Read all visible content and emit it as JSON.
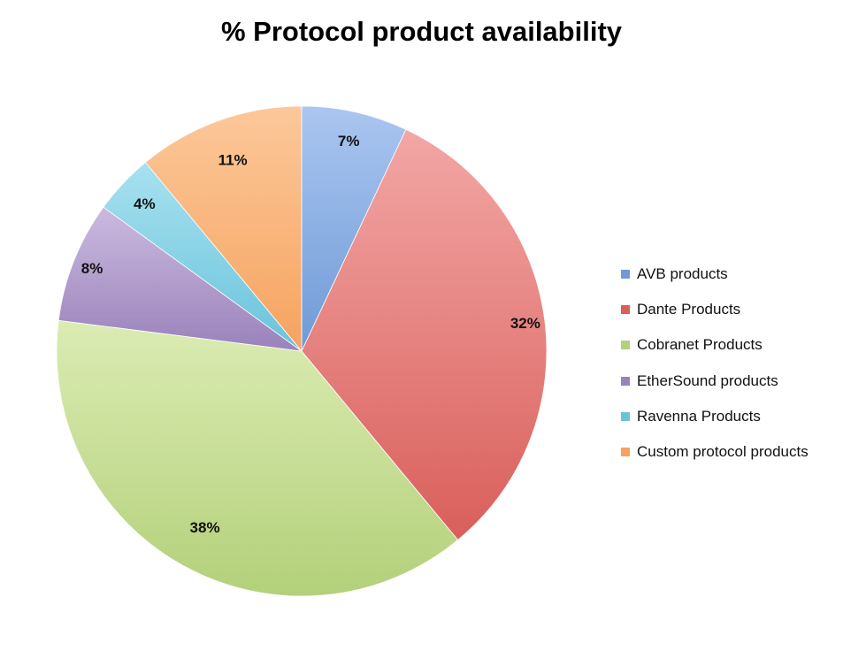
{
  "chart_data": {
    "type": "pie",
    "title": "% Protocol product availability",
    "categories": [
      "AVB products",
      "Dante Products",
      "Cobranet Products",
      "EtherSound products",
      "Ravenna Products",
      "Custom protocol products"
    ],
    "values": [
      7,
      32,
      38,
      8,
      4,
      11
    ],
    "labels": [
      "7%",
      "32%",
      "38%",
      "8%",
      "4%",
      "11%"
    ],
    "colors": [
      "#6f9ad6",
      "#d95f5b",
      "#b3d07a",
      "#9a82bb",
      "#6ac3db",
      "#f6a35f"
    ],
    "colors_light": [
      "#aac6f0",
      "#f2a7a5",
      "#dbecb3",
      "#cbbadf",
      "#a7e1ef",
      "#fcc89a"
    ],
    "legend_position": "right",
    "start_angle": "top, clockwise"
  }
}
